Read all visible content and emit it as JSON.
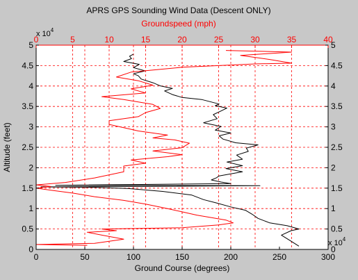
{
  "chart_data": {
    "type": "line",
    "title": "APRS GPS Sounding Wind Data (Descent ONLY)",
    "top_axis": {
      "label": "Groundspeed (mph)",
      "ticks": [
        0,
        5,
        10,
        15,
        20,
        25,
        30,
        35,
        40
      ],
      "range": [
        0,
        40
      ],
      "color": "#ff0000"
    },
    "bottom_axis": {
      "label": "Ground Course (degrees)",
      "ticks": [
        0,
        50,
        100,
        150,
        200,
        250,
        300
      ],
      "range": [
        0,
        300
      ],
      "color": "#000000"
    },
    "y_axis": {
      "label": "Altitude (feet)",
      "tick_labels": [
        "0",
        "0.5",
        "1",
        "1.5",
        "2",
        "2.5",
        "3",
        "3.5",
        "4",
        "4.5",
        "5"
      ],
      "range": [
        0,
        50000
      ],
      "multiplier_base": "x 10",
      "multiplier_exp": "4"
    },
    "grid": {
      "on": true,
      "style": "dashed",
      "color": "#ff0000",
      "note": "vertical gridlines are drawn at bottom-axis ticks 50,100,150,200 and top-axis ticks 5,10,15,20,25,30,35"
    },
    "series": [
      {
        "axis": "bottom",
        "color": "#000000",
        "points": [
          [
            270,
            800
          ],
          [
            262,
            2000
          ],
          [
            252,
            3500
          ],
          [
            262,
            4600
          ],
          [
            270,
            5000
          ],
          [
            258,
            5800
          ],
          [
            240,
            6500
          ],
          [
            228,
            7600
          ],
          [
            222,
            8600
          ],
          [
            215,
            9600
          ],
          [
            200,
            10400
          ],
          [
            185,
            11400
          ],
          [
            172,
            12200
          ],
          [
            160,
            13300
          ],
          [
            130,
            14200
          ],
          [
            95,
            14900
          ],
          [
            60,
            15200
          ],
          [
            5,
            15300
          ],
          [
            230,
            15600
          ],
          [
            20,
            15700
          ],
          [
            200,
            16100
          ],
          [
            190,
            16500
          ],
          [
            180,
            17000
          ],
          [
            185,
            17500
          ],
          [
            188,
            18000
          ],
          [
            212,
            19000
          ],
          [
            195,
            19800
          ],
          [
            212,
            20500
          ],
          [
            196,
            21400
          ],
          [
            212,
            22100
          ],
          [
            206,
            23100
          ],
          [
            218,
            24000
          ],
          [
            216,
            24800
          ],
          [
            228,
            25600
          ],
          [
            205,
            26100
          ],
          [
            192,
            27000
          ],
          [
            188,
            27800
          ],
          [
            200,
            28500
          ],
          [
            184,
            29200
          ],
          [
            190,
            30100
          ],
          [
            172,
            31000
          ],
          [
            186,
            32000
          ],
          [
            182,
            33000
          ],
          [
            190,
            33900
          ],
          [
            196,
            34600
          ],
          [
            184,
            35200
          ],
          [
            188,
            35600
          ],
          [
            170,
            36700
          ],
          [
            150,
            37200
          ],
          [
            140,
            37900
          ],
          [
            132,
            38800
          ],
          [
            140,
            39400
          ],
          [
            128,
            40000
          ],
          [
            120,
            40800
          ],
          [
            108,
            41700
          ],
          [
            105,
            42500
          ],
          [
            100,
            43000
          ],
          [
            112,
            43700
          ],
          [
            100,
            44500
          ],
          [
            106,
            45300
          ],
          [
            90,
            46000
          ],
          [
            98,
            46700
          ],
          [
            96,
            47300
          ],
          [
            100,
            47800
          ]
        ]
      },
      {
        "axis": "top",
        "color": "#ff0000",
        "points": [
          [
            7,
            1000
          ],
          [
            0,
            1200
          ],
          [
            8,
            1500
          ],
          [
            12,
            2500
          ],
          [
            9,
            3500
          ],
          [
            7,
            4200
          ],
          [
            11,
            4600
          ],
          [
            9,
            5000
          ],
          [
            20,
            5300
          ],
          [
            25,
            6000
          ],
          [
            27,
            6500
          ],
          [
            26,
            7200
          ],
          [
            22,
            8400
          ],
          [
            20,
            9200
          ],
          [
            18,
            10000
          ],
          [
            15,
            11100
          ],
          [
            12,
            12000
          ],
          [
            8,
            12900
          ],
          [
            5,
            13800
          ],
          [
            2,
            14500
          ],
          [
            0,
            15000
          ],
          [
            2,
            15400
          ],
          [
            0,
            15800
          ],
          [
            4,
            16400
          ],
          [
            8,
            17500
          ],
          [
            12,
            19000
          ],
          [
            12,
            20400
          ],
          [
            15,
            21100
          ],
          [
            13,
            21900
          ],
          [
            18,
            22700
          ],
          [
            20,
            23200
          ],
          [
            16,
            24100
          ],
          [
            20,
            24900
          ],
          [
            21,
            26000
          ],
          [
            19,
            26800
          ],
          [
            16,
            27300
          ],
          [
            18,
            28000
          ],
          [
            14,
            29000
          ],
          [
            12,
            29800
          ],
          [
            10,
            30600
          ],
          [
            10,
            31500
          ],
          [
            14,
            32500
          ],
          [
            15,
            33500
          ],
          [
            17,
            34500
          ],
          [
            16,
            35500
          ],
          [
            12,
            36700
          ],
          [
            9,
            37400
          ],
          [
            15,
            38300
          ],
          [
            13,
            39300
          ],
          [
            16,
            40200
          ],
          [
            14,
            41300
          ],
          [
            11,
            42200
          ],
          [
            13,
            43400
          ],
          [
            20,
            44600
          ],
          [
            30,
            45400
          ],
          [
            35,
            45600
          ],
          [
            32,
            46500
          ],
          [
            28,
            47500
          ],
          [
            35,
            48300
          ],
          [
            26,
            48700
          ]
        ]
      }
    ]
  }
}
